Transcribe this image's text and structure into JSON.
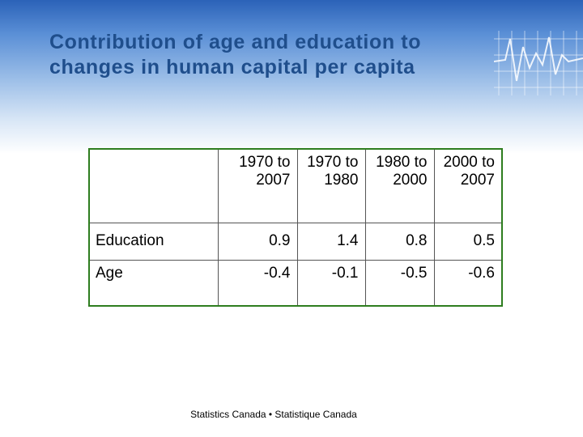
{
  "title_lines": [
    "Contribution of age and education to",
    "changes in human capital per capita"
  ],
  "table": {
    "headers": [
      [
        "1970 to",
        "2007"
      ],
      [
        "1970 to",
        "1980"
      ],
      [
        "1980 to",
        "2000"
      ],
      [
        "2000 to",
        "2007"
      ]
    ],
    "rows": [
      {
        "label": "Education",
        "values": [
          "0.9",
          "1.4",
          "0.8",
          "0.5"
        ]
      },
      {
        "label": "Age",
        "values": [
          "-0.4",
          "-0.1",
          "-0.5",
          "-0.6"
        ]
      }
    ]
  },
  "footer": "Statistics Canada • Statistique Canada",
  "colors": {
    "title": "#1f4e8c",
    "table_border": "#2e7d1f"
  }
}
